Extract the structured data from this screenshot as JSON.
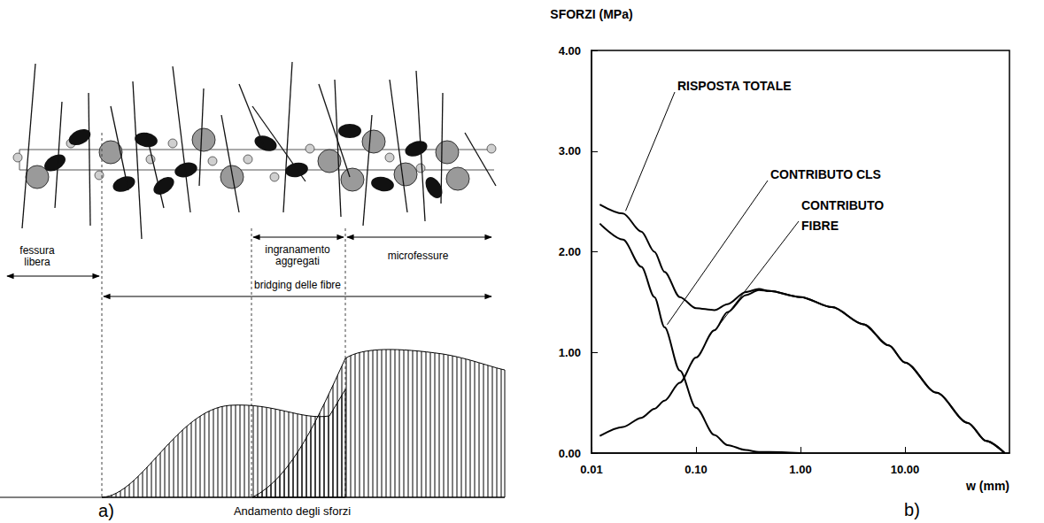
{
  "diagram": {
    "panel_label": "a)",
    "zones": {
      "free_crack": "fessura libera",
      "aggregate_interlock": "ingranamento aggregati",
      "microcracks": "microfessure",
      "fibre_bridging": "bridging delle fibre"
    },
    "caption": "Andamento degli sforzi"
  },
  "chart_data": {
    "type": "line",
    "panel_label": "b)",
    "ylabel": "SFORZI (MPa)",
    "xlabel": "w (mm)",
    "log": "x",
    "grid": false,
    "xlim": [
      0.01,
      100
    ],
    "xticks": [
      0.01,
      {
        "value": 0.1,
        "label": "0.10"
      },
      {
        "value": 1,
        "label": "1.00"
      },
      {
        "value": 10,
        "label": "10.00"
      }
    ],
    "ylim": [
      0,
      4
    ],
    "yticks": [
      {
        "value": 0,
        "label": "0.00"
      },
      {
        "value": 1,
        "label": "1.00"
      },
      {
        "value": 2,
        "label": "2.00"
      },
      {
        "value": 3,
        "label": "3.00"
      },
      {
        "value": 4,
        "label": "4.00"
      }
    ],
    "x": [
      0.012,
      0.02,
      0.03,
      0.04,
      0.05,
      0.07,
      0.1,
      0.15,
      0.2,
      0.3,
      0.4,
      0.5,
      1,
      2,
      4,
      7,
      10,
      20,
      40,
      60,
      90
    ],
    "series": [
      {
        "name": "RISPOSTA TOTALE",
        "color": "#000000",
        "values": [
          2.47,
          2.38,
          2.2,
          2.0,
          1.8,
          1.55,
          1.44,
          1.42,
          1.48,
          1.6,
          1.63,
          1.61,
          1.55,
          1.45,
          1.28,
          1.07,
          0.9,
          0.6,
          0.3,
          0.12,
          0
        ]
      },
      {
        "name": "CONTRIBUTO CLS",
        "color": "#000000",
        "values": [
          2.28,
          2.12,
          1.85,
          1.55,
          1.25,
          0.82,
          0.45,
          0.18,
          0.08,
          0.03,
          0.01,
          0.01,
          0,
          null,
          null,
          null,
          null,
          null,
          null,
          null,
          null
        ]
      },
      {
        "name": "CONTRIBUTO FIBRE",
        "color": "#000000",
        "values": [
          0.17,
          0.26,
          0.35,
          0.44,
          0.52,
          0.7,
          0.95,
          1.22,
          1.4,
          1.57,
          1.62,
          1.61,
          1.55,
          1.45,
          1.28,
          1.07,
          0.9,
          0.6,
          0.3,
          0.12,
          0
        ]
      }
    ]
  }
}
